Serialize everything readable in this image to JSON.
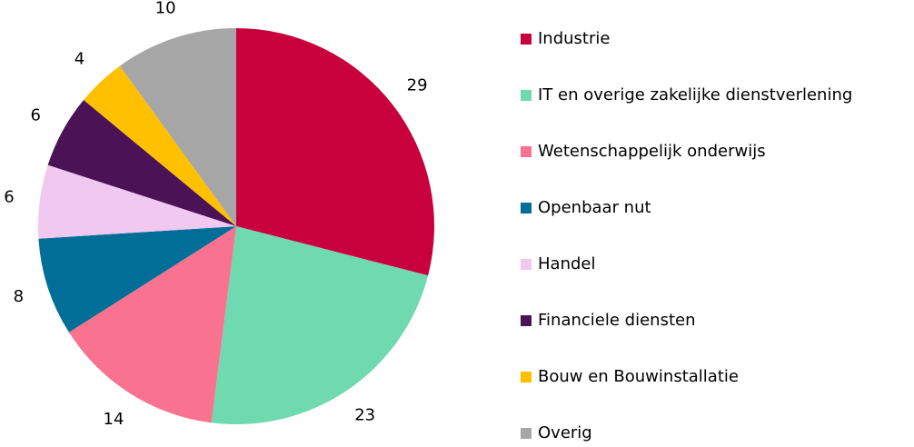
{
  "chart_data": {
    "type": "pie",
    "categories": [
      "Industrie",
      "IT en overige zakelijke dienstverlening",
      "Wetenschappelijk onderwijs",
      "Openbaar nut",
      "Handel",
      "Financiele diensten",
      "Bouw en Bouwinstallatie",
      "Overig"
    ],
    "values": [
      29,
      23,
      14,
      8,
      6,
      6,
      4,
      10
    ],
    "colors": [
      "#c8003c",
      "#6fd9b0",
      "#f9728f",
      "#006e96",
      "#f0c8f0",
      "#4b1356",
      "#ffc000",
      "#a6a6a6"
    ],
    "legend": "right"
  }
}
